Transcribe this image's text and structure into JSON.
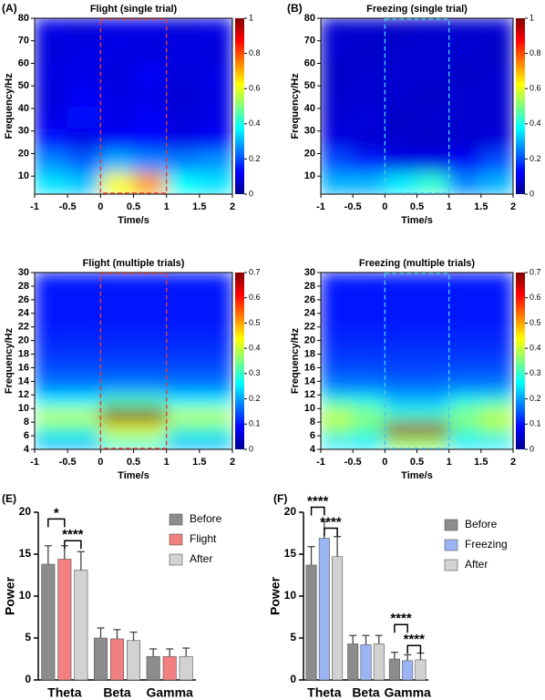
{
  "chart_data": [
    {
      "type": "heatmap",
      "panel": "(A)",
      "title": "Flight (single trial)",
      "x_label": "Time/s",
      "y_label": "Frequency/Hz",
      "xlim": [
        -1,
        2
      ],
      "xticks": [
        -1,
        -0.5,
        0,
        0.5,
        1,
        1.5,
        2
      ],
      "ylim": [
        2,
        80
      ],
      "yticks": [
        10,
        20,
        30,
        40,
        50,
        60,
        70,
        80
      ],
      "clim": [
        0,
        1
      ],
      "cticks": [
        0,
        0.2,
        0.4,
        0.6,
        0.8,
        1
      ],
      "colormap": "jet",
      "highlight": {
        "x": [
          0,
          1
        ],
        "color": "#e0403a"
      },
      "z": [
        [
          0.35,
          0.32,
          0.62,
          0.72,
          0.38,
          0.35
        ],
        [
          0.26,
          0.22,
          0.3,
          0.26,
          0.25,
          0.27
        ],
        [
          0.14,
          0.1,
          0.12,
          0.13,
          0.1,
          0.12
        ],
        [
          0.1,
          0.14,
          0.1,
          0.12,
          0.09,
          0.1
        ],
        [
          0.09,
          0.12,
          0.1,
          0.1,
          0.08,
          0.1
        ],
        [
          0.1,
          0.1,
          0.09,
          0.12,
          0.09,
          0.1
        ],
        [
          0.09,
          0.1,
          0.1,
          0.09,
          0.1,
          0.09
        ],
        [
          0.1,
          0.09,
          0.1,
          0.1,
          0.09,
          0.1
        ]
      ]
    },
    {
      "type": "heatmap",
      "panel": "(B)",
      "title": "Freezing (single trial)",
      "x_label": "Time/s",
      "y_label": "Frequency/Hz",
      "xlim": [
        -1,
        2
      ],
      "xticks": [
        -1,
        -0.5,
        0,
        0.5,
        1,
        1.5,
        2
      ],
      "ylim": [
        2,
        80
      ],
      "yticks": [
        10,
        20,
        30,
        40,
        50,
        60,
        70,
        80
      ],
      "clim": [
        0,
        1
      ],
      "cticks": [
        0,
        0.2,
        0.4,
        0.6,
        0.8,
        1
      ],
      "colormap": "jet",
      "highlight": {
        "x": [
          0,
          1
        ],
        "color": "#46c8e8"
      },
      "z": [
        [
          0.3,
          0.3,
          0.36,
          0.42,
          0.26,
          0.3
        ],
        [
          0.2,
          0.15,
          0.1,
          0.1,
          0.12,
          0.2
        ],
        [
          0.1,
          0.08,
          0.08,
          0.07,
          0.08,
          0.09
        ],
        [
          0.08,
          0.09,
          0.07,
          0.08,
          0.08,
          0.08
        ],
        [
          0.08,
          0.08,
          0.08,
          0.07,
          0.08,
          0.08
        ],
        [
          0.07,
          0.08,
          0.08,
          0.08,
          0.07,
          0.08
        ],
        [
          0.08,
          0.07,
          0.08,
          0.08,
          0.08,
          0.07
        ],
        [
          0.08,
          0.08,
          0.07,
          0.08,
          0.08,
          0.08
        ]
      ]
    },
    {
      "type": "heatmap",
      "title": "Flight (multiple trials)",
      "x_label": "Time/s",
      "y_label": "Frequency/Hz",
      "xlim": [
        -1,
        2
      ],
      "xticks": [
        -1,
        -0.5,
        0,
        0.5,
        1,
        1.5,
        2
      ],
      "ylim": [
        4,
        30
      ],
      "yticks": [
        4,
        6,
        8,
        10,
        12,
        14,
        16,
        18,
        20,
        22,
        24,
        26,
        28,
        30
      ],
      "clim": [
        0,
        0.7
      ],
      "cticks": [
        0,
        0.1,
        0.2,
        0.3,
        0.4,
        0.5,
        0.6,
        0.7
      ],
      "colormap": "jet",
      "highlight": {
        "x": [
          0,
          1
        ],
        "color": "#e0403a"
      },
      "z": [
        [
          0.22,
          0.22,
          0.3,
          0.3,
          0.22,
          0.22
        ],
        [
          0.3,
          0.3,
          0.42,
          0.42,
          0.3,
          0.3
        ],
        [
          0.4,
          0.4,
          0.7,
          0.7,
          0.4,
          0.4
        ],
        [
          0.26,
          0.26,
          0.32,
          0.32,
          0.26,
          0.26
        ],
        [
          0.18,
          0.18,
          0.19,
          0.19,
          0.18,
          0.18
        ],
        [
          0.15,
          0.15,
          0.15,
          0.15,
          0.15,
          0.15
        ],
        [
          0.13,
          0.13,
          0.13,
          0.13,
          0.13,
          0.13
        ],
        [
          0.12,
          0.12,
          0.12,
          0.12,
          0.12,
          0.12
        ],
        [
          0.11,
          0.11,
          0.11,
          0.11,
          0.11,
          0.11
        ],
        [
          0.1,
          0.1,
          0.1,
          0.1,
          0.1,
          0.1
        ],
        [
          0.1,
          0.1,
          0.1,
          0.1,
          0.1,
          0.1
        ],
        [
          0.1,
          0.1,
          0.1,
          0.1,
          0.1,
          0.1
        ],
        [
          0.1,
          0.1,
          0.1,
          0.1,
          0.1,
          0.1
        ]
      ]
    },
    {
      "type": "heatmap",
      "title": "Freezing (multiple trials)",
      "x_label": "Time/s",
      "y_label": "Frequency/Hz",
      "xlim": [
        -1,
        2
      ],
      "xticks": [
        -1,
        -0.5,
        0,
        0.5,
        1,
        1.5,
        2
      ],
      "ylim": [
        4,
        30
      ],
      "yticks": [
        4,
        6,
        8,
        10,
        12,
        14,
        16,
        18,
        20,
        22,
        24,
        26,
        28,
        30
      ],
      "clim": [
        0,
        0.7
      ],
      "cticks": [
        0,
        0.1,
        0.2,
        0.3,
        0.4,
        0.5,
        0.6,
        0.7
      ],
      "colormap": "jet",
      "highlight": {
        "x": [
          0,
          1
        ],
        "color": "#46c8e8"
      },
      "z": [
        [
          0.25,
          0.25,
          0.36,
          0.36,
          0.25,
          0.25
        ],
        [
          0.36,
          0.32,
          0.68,
          0.68,
          0.32,
          0.36
        ],
        [
          0.4,
          0.36,
          0.3,
          0.3,
          0.36,
          0.4
        ],
        [
          0.3,
          0.28,
          0.22,
          0.22,
          0.28,
          0.3
        ],
        [
          0.18,
          0.18,
          0.17,
          0.17,
          0.18,
          0.18
        ],
        [
          0.15,
          0.15,
          0.14,
          0.14,
          0.15,
          0.15
        ],
        [
          0.13,
          0.13,
          0.13,
          0.13,
          0.13,
          0.13
        ],
        [
          0.12,
          0.12,
          0.12,
          0.12,
          0.12,
          0.12
        ],
        [
          0.11,
          0.11,
          0.11,
          0.11,
          0.11,
          0.11
        ],
        [
          0.1,
          0.1,
          0.1,
          0.1,
          0.1,
          0.1
        ],
        [
          0.1,
          0.1,
          0.1,
          0.1,
          0.1,
          0.1
        ],
        [
          0.1,
          0.1,
          0.1,
          0.1,
          0.1,
          0.1
        ],
        [
          0.1,
          0.1,
          0.1,
          0.1,
          0.1,
          0.1
        ]
      ]
    },
    {
      "type": "bar",
      "panel": "(E)",
      "y_label": "Power",
      "categories": [
        "Theta",
        "Beta",
        "Gamma"
      ],
      "ylim": [
        0,
        20
      ],
      "yticks": [
        0,
        5,
        10,
        15,
        20
      ],
      "series": [
        {
          "name": "Before",
          "color": "#8c8c8c",
          "values": [
            13.8,
            5.0,
            2.8
          ],
          "errors": [
            2.2,
            1.2,
            0.9
          ]
        },
        {
          "name": "Flight",
          "color": "#f28080",
          "values": [
            14.4,
            4.9,
            2.8
          ],
          "errors": [
            1.6,
            1.1,
            0.9
          ]
        },
        {
          "name": "After",
          "color": "#d2d2d2",
          "values": [
            13.1,
            4.7,
            2.8
          ],
          "errors": [
            2.2,
            1.0,
            1.0
          ]
        }
      ],
      "annotations": [
        {
          "text": "*",
          "category": 0,
          "pair": [
            0,
            1
          ],
          "y": 19.2
        },
        {
          "text": "****",
          "category": 0,
          "pair": [
            1,
            2
          ],
          "y": 16.6
        }
      ]
    },
    {
      "type": "bar",
      "panel": "(F)",
      "y_label": "Power",
      "categories": [
        "Theta",
        "Beta",
        "Gamma"
      ],
      "ylim": [
        0,
        20
      ],
      "yticks": [
        0,
        5,
        10,
        15,
        20
      ],
      "series": [
        {
          "name": "Before",
          "color": "#8c8c8c",
          "values": [
            13.7,
            4.3,
            2.5
          ],
          "errors": [
            2.2,
            1.0,
            0.8
          ]
        },
        {
          "name": "Freezing",
          "color": "#9bb4f4",
          "values": [
            16.9,
            4.2,
            2.3
          ],
          "errors": [
            2.0,
            1.1,
            0.7
          ]
        },
        {
          "name": "After",
          "color": "#d2d2d2",
          "values": [
            14.7,
            4.3,
            2.4
          ],
          "errors": [
            2.4,
            1.0,
            0.8
          ]
        }
      ],
      "annotations": [
        {
          "text": "****",
          "category": 0,
          "pair": [
            0,
            1
          ],
          "y": 20.6
        },
        {
          "text": "****",
          "category": 0,
          "pair": [
            1,
            2
          ],
          "y": 18.1
        },
        {
          "text": "****",
          "category": 2,
          "pair": [
            0,
            1
          ],
          "y": 6.6
        },
        {
          "text": "****",
          "category": 2,
          "pair": [
            1,
            2
          ],
          "y": 4.1
        }
      ]
    }
  ]
}
